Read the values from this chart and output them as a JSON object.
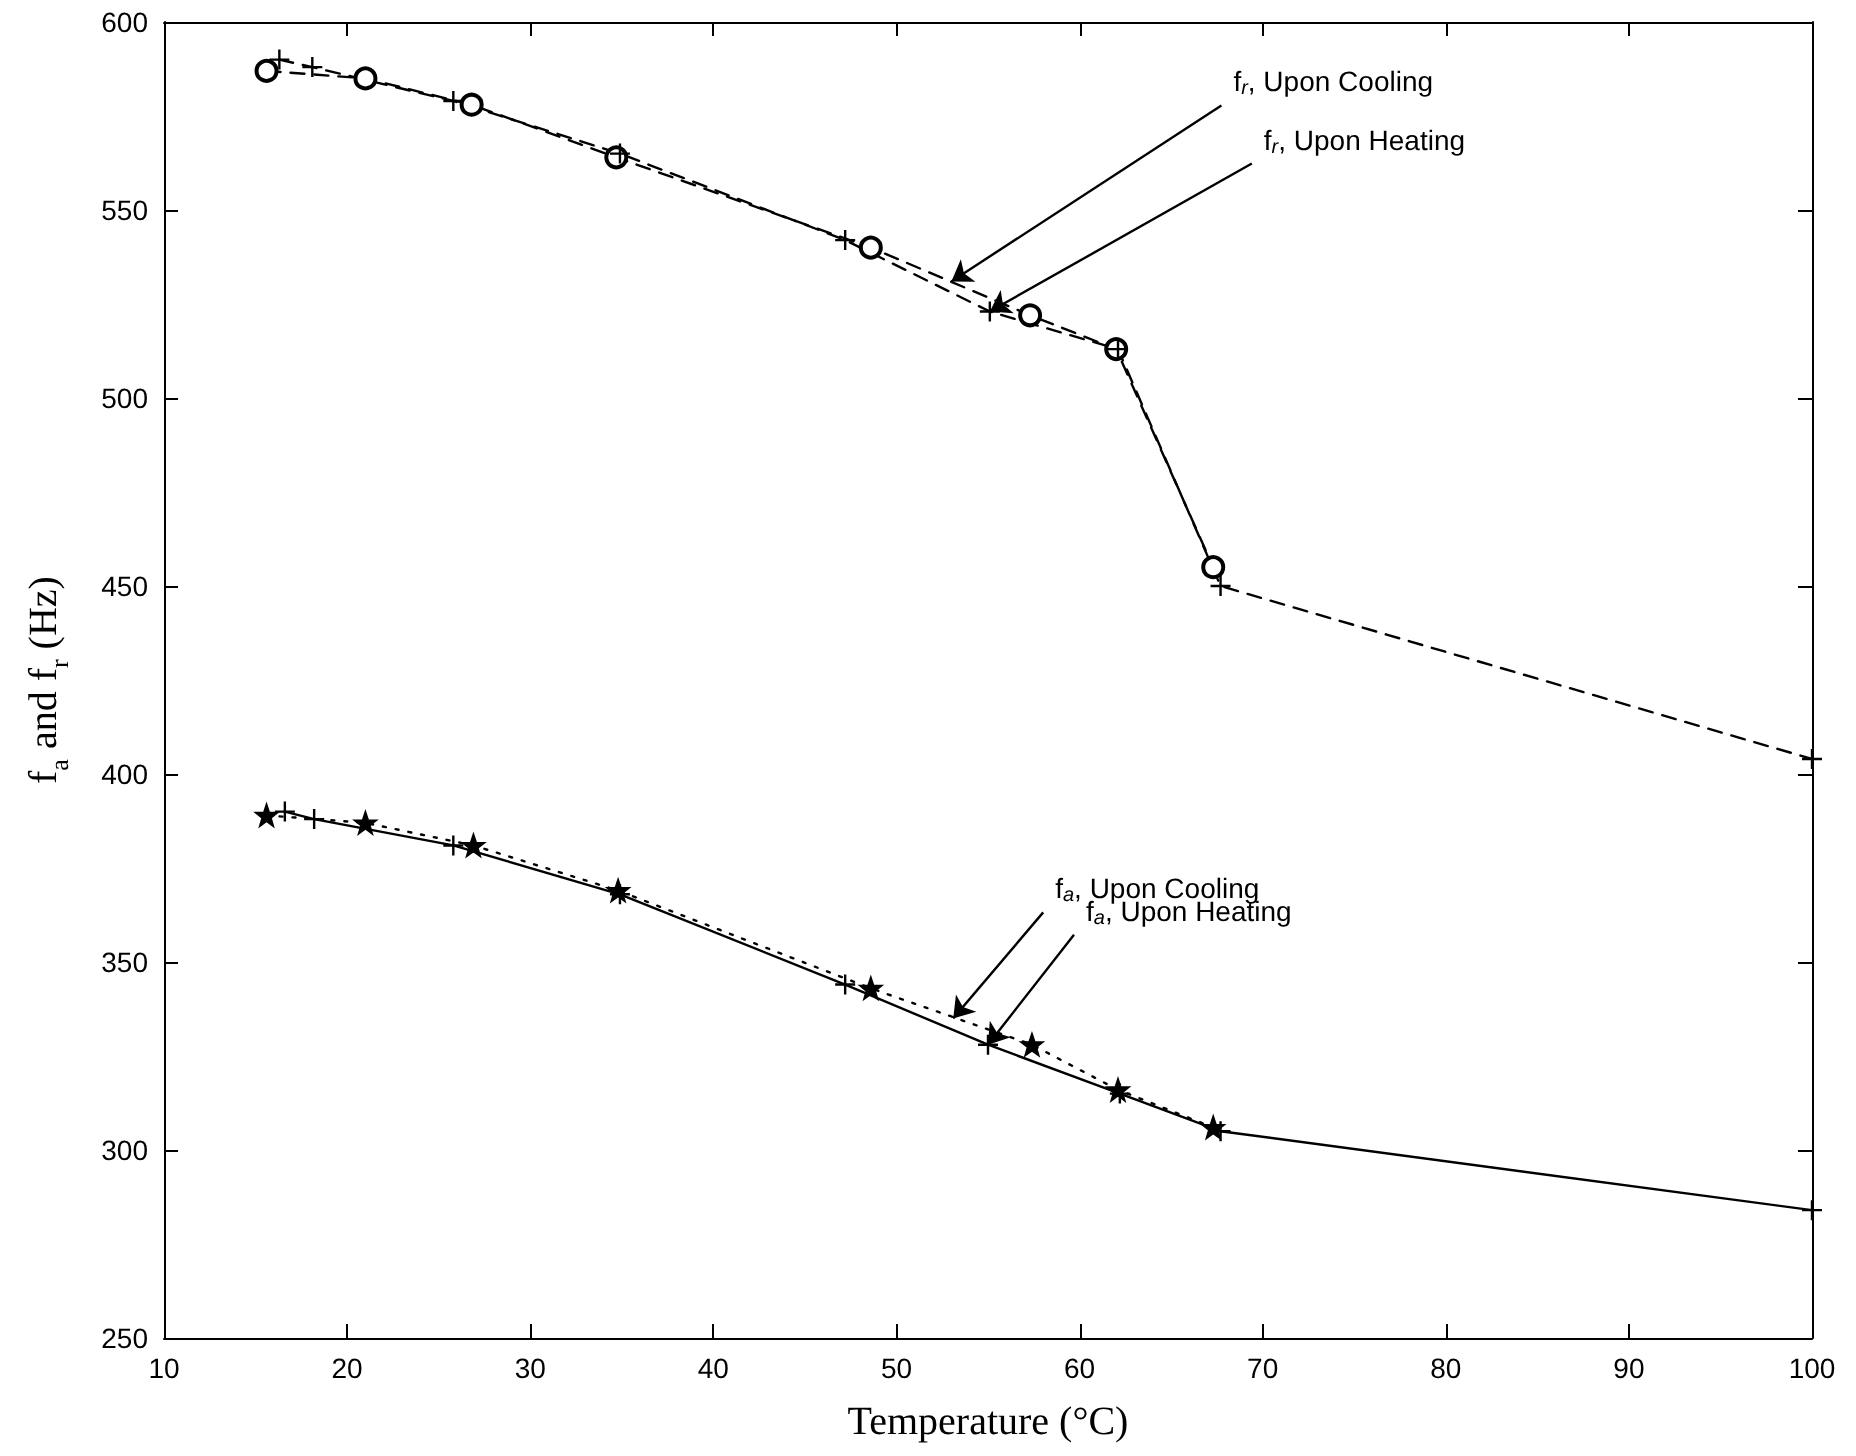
{
  "chart_data": {
    "type": "line",
    "xlabel": "Temperature (°C)",
    "ylabel": "f$_{a}$ and f$_{r}$ (Hz)",
    "xlim": [
      10,
      100
    ],
    "xticks": [
      10,
      20,
      30,
      40,
      50,
      60,
      70,
      80,
      90,
      100
    ],
    "ylim": [
      250,
      600
    ],
    "yticks": [
      250,
      300,
      350,
      400,
      450,
      500,
      550,
      600
    ],
    "grid": false,
    "series": [
      {
        "color": "#000000",
        "marker": "circle",
        "line_style": "dashed",
        "x": [
          15.6,
          21.0,
          26.8,
          34.7,
          48.6,
          57.3,
          62.0,
          67.3
        ],
        "values": [
          587,
          585,
          578,
          564,
          540,
          522,
          513,
          455
        ]
      },
      {
        "color": "#000000",
        "marker": "cross",
        "line_style": "dashed",
        "x": [
          16.3,
          18.1,
          25.8,
          34.9,
          47.2,
          55.1,
          62.1,
          67.7,
          100
        ],
        "values": [
          590,
          588,
          579,
          565,
          542,
          523,
          513,
          450,
          404
        ]
      },
      {
        "color": "#000000",
        "marker": "star",
        "line_style": "dotted",
        "x": [
          15.6,
          21.0,
          26.9,
          34.8,
          48.6,
          57.4,
          62.1,
          67.3
        ],
        "values": [
          389,
          387,
          381,
          369,
          343,
          328,
          316,
          306
        ]
      },
      {
        "color": "#000000",
        "marker": "cross",
        "line_style": "solid",
        "x": [
          16.6,
          18.2,
          25.8,
          34.9,
          47.2,
          55.0,
          62.2,
          67.7,
          100
        ],
        "values": [
          390,
          388,
          381,
          368,
          344,
          328,
          315,
          305,
          284
        ]
      }
    ],
    "annotations": [
      {
        "text": "f$_{r}$, Upon Cooling",
        "x": 53.0,
        "y": 531
      },
      {
        "text": "f$_{r}$, Upon Heating",
        "x": 55.1,
        "y": 523
      },
      {
        "text": "f$_{a}$, Upon Cooling",
        "x": 53.1,
        "y": 335
      },
      {
        "text": "f$_{a}$, Upon Heating",
        "x": 55.0,
        "y": 328
      }
    ]
  }
}
